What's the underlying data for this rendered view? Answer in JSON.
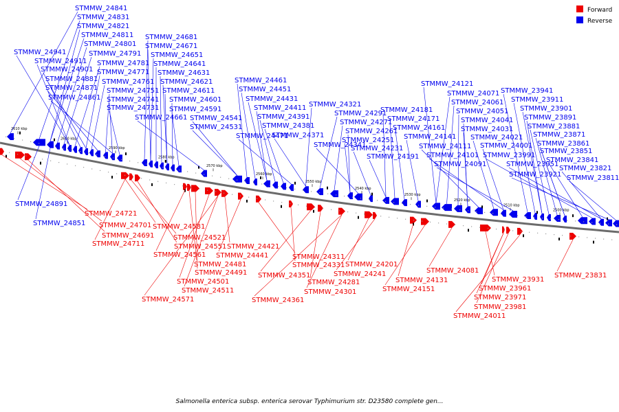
{
  "legend": {
    "forward_label": "Forward",
    "reverse_label": "Reverse",
    "forward_color": "#ee0000",
    "reverse_color": "#0000ee"
  },
  "caption": "Salmonella enterica subsp. enterica serovar Typhimurium str. D23580 complete gen...",
  "track": {
    "kbp_labels": [
      "2610 kbp",
      "2600 kbp",
      "2590 kbp",
      "2580 kbp",
      "2570 kbp",
      "2560 kbp",
      "2550 kbp",
      "2540 kbp",
      "2530 kbp",
      "2520 kbp",
      "2510 kbp",
      "2500 kbp"
    ]
  },
  "reverse_labels_above": [
    "STMMW_24841",
    "STMMW_24831",
    "STMMW_24821",
    "STMMW_24811",
    "STMMW_24801",
    "STMMW_24791",
    "STMMW_24941",
    "STMMW_24911",
    "STMMW_24781",
    "STMMW_24901",
    "STMMW_24771",
    "STMMW_24881",
    "STMMW_24761",
    "STMMW_24871",
    "STMMW_24751",
    "STMMW_24861",
    "STMMW_24741",
    "STMMW_24731",
    "STMMW_24681",
    "STMMW_24671",
    "STMMW_24651",
    "STMMW_24641",
    "STMMW_24631",
    "STMMW_24621",
    "STMMW_24611",
    "STMMW_24601",
    "STMMW_24591",
    "STMMW_24661",
    "STMMW_24541",
    "STMMW_24531",
    "STMMW_24461",
    "STMMW_24451",
    "STMMW_24431",
    "STMMW_24411",
    "STMMW_24391",
    "STMMW_24381",
    "STMMW_24471",
    "STMMW_24371",
    "STMMW_24321",
    "STMMW_24291",
    "STMMW_24271",
    "STMMW_24261",
    "STMMW_24251",
    "STMMW_24341",
    "STMMW_24231",
    "STMMW_24191",
    "STMMW_24181",
    "STMMW_24171",
    "STMMW_24161",
    "STMMW_24141",
    "STMMW_24121",
    "STMMW_24071",
    "STMMW_24061",
    "STMMW_24051",
    "STMMW_24041",
    "STMMW_24031",
    "STMMW_24111",
    "STMMW_24021",
    "STMMW_24101",
    "STMMW_24001",
    "STMMW_24091",
    "STMMW_23941",
    "STMMW_23911",
    "STMMW_23901",
    "STMMW_23891",
    "STMMW_23881",
    "STMMW_23871",
    "STMMW_23861",
    "STMMW_23851",
    "STMMW_23841",
    "STMMW_23991",
    "STMMW_23951",
    "STMMW_23821",
    "STMMW_23921",
    "STMMW_23811"
  ],
  "reverse_labels_below": [
    "STMMW_24891",
    "STMMW_24851"
  ],
  "forward_labels_below": [
    "STMMW_24721",
    "STMMW_24701",
    "STMMW_24691",
    "STMMW_24711",
    "STMMW_24581",
    "STMMW_24521",
    "STMMW_24551",
    "STMMW_24561",
    "STMMW_24481",
    "STMMW_24491",
    "STMMW_24501",
    "STMMW_24511",
    "STMMW_24571",
    "STMMW_24421",
    "STMMW_24441",
    "STMMW_24311",
    "STMMW_24331",
    "STMMW_24351",
    "STMMW_24281",
    "STMMW_24301",
    "STMMW_24361",
    "STMMW_24201",
    "STMMW_24241",
    "STMMW_24131",
    "STMMW_24151",
    "STMMW_24081",
    "STMMW_23931",
    "STMMW_23961",
    "STMMW_23971",
    "STMMW_23981",
    "STMMW_24011",
    "STMMW_23831"
  ]
}
